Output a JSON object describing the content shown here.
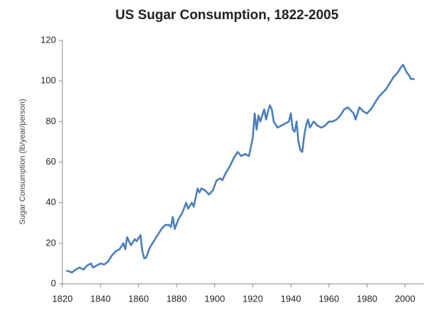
{
  "chart_data": {
    "type": "line",
    "title": "US Sugar Consumption, 1822-2005",
    "y_label": "Sugar Consumption (lb/year/person)",
    "x": [
      1822,
      1824,
      1825,
      1827,
      1829,
      1831,
      1833,
      1835,
      1836,
      1838,
      1840,
      1842,
      1844,
      1846,
      1848,
      1850,
      1852,
      1853,
      1854,
      1856,
      1858,
      1859,
      1861,
      1862,
      1863,
      1864,
      1866,
      1868,
      1870,
      1872,
      1874,
      1876,
      1877,
      1878,
      1879,
      1881,
      1883,
      1885,
      1886,
      1888,
      1889,
      1891,
      1892,
      1893,
      1895,
      1897,
      1899,
      1901,
      1903,
      1904,
      1906,
      1908,
      1910,
      1912,
      1914,
      1916,
      1918,
      1920,
      1921,
      1922,
      1923,
      1924,
      1926,
      1927,
      1928,
      1929,
      1930,
      1931,
      1933,
      1935,
      1937,
      1939,
      1940,
      1941,
      1942,
      1943,
      1944,
      1945,
      1946,
      1947,
      1948,
      1949,
      1950,
      1952,
      1954,
      1956,
      1958,
      1960,
      1962,
      1964,
      1966,
      1968,
      1970,
      1972,
      1973,
      1974,
      1976,
      1978,
      1980,
      1982,
      1984,
      1986,
      1988,
      1990,
      1992,
      1994,
      1996,
      1998,
      1999,
      2000,
      2001,
      2002,
      2003,
      2005
    ],
    "values": [
      6.5,
      6,
      5.5,
      7,
      8,
      7,
      9,
      10,
      8,
      9,
      10,
      9.5,
      11,
      14,
      16,
      17,
      20,
      17,
      23,
      19,
      22,
      21,
      24,
      16,
      12.5,
      13,
      18,
      21,
      24,
      27,
      29,
      29,
      28,
      33,
      27,
      32,
      35,
      40,
      37,
      40,
      38,
      47,
      45,
      47,
      46,
      44,
      46,
      51,
      52,
      51,
      55,
      58,
      62,
      65,
      63,
      64,
      63,
      72,
      84,
      76,
      83,
      80,
      86,
      81,
      85,
      88,
      86,
      80,
      77,
      78,
      79,
      80,
      84,
      76,
      75,
      80,
      70,
      66,
      65,
      73,
      78,
      81,
      77,
      80,
      78,
      77,
      78,
      80,
      80,
      81,
      83,
      86,
      87,
      85,
      84,
      81,
      87,
      85,
      84,
      86,
      89,
      92,
      94,
      96,
      99,
      102,
      104,
      107,
      108,
      106,
      104,
      103,
      101,
      101
    ],
    "color": "#4a7ebb",
    "xlim": [
      1820,
      2010
    ],
    "xticks": [
      1820,
      1840,
      1860,
      1880,
      1900,
      1920,
      1940,
      1960,
      1980,
      2000
    ],
    "ylim": [
      0,
      120
    ],
    "yticks": [
      0,
      20,
      40,
      60,
      80,
      100,
      120
    ],
    "grid": false
  }
}
